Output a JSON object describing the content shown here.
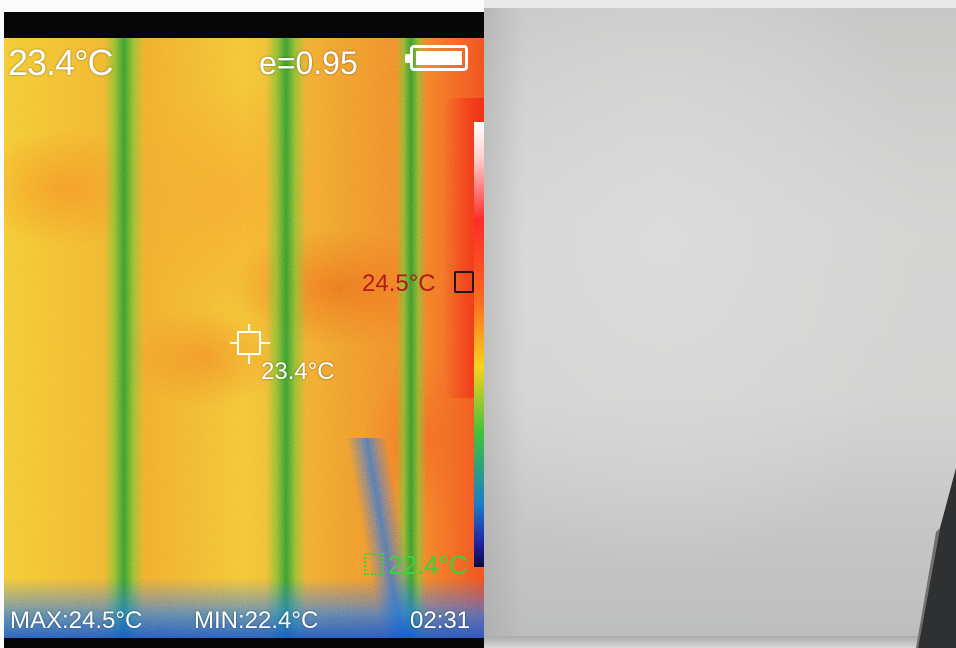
{
  "thermal": {
    "center_temperature": "23.4°C",
    "emissivity": "e=0.95",
    "battery_icon": "battery-full-icon",
    "hot_spot_label": "24.5°C",
    "cold_spot_label": "22.4°C",
    "spot_label": "23.4°C",
    "footer": {
      "max": "MAX:24.5°C",
      "min": "MIN:22.4°C",
      "time": "02:31"
    }
  }
}
